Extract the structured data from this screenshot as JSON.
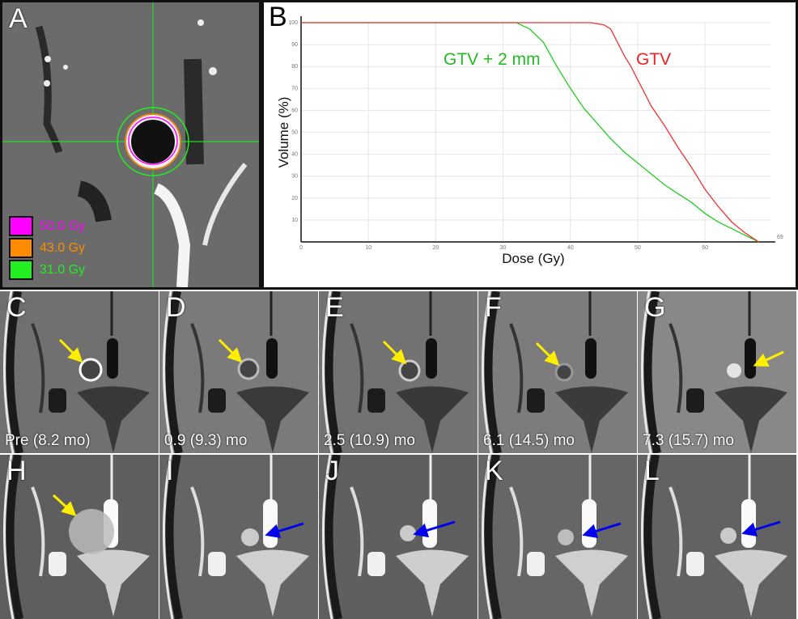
{
  "figure": {
    "panels": {
      "A": {
        "letter": "A",
        "legend": [
          {
            "label": "50.0 Gy",
            "color": "#ff00ff"
          },
          {
            "label": "43.0 Gy",
            "color": "#ff8c00"
          },
          {
            "label": "31.0 Gy",
            "color": "#22ee22"
          }
        ]
      },
      "B": {
        "letter": "B"
      },
      "C": {
        "letter": "C",
        "caption": "Pre (8.2 mo)",
        "arrow_color": "#ffee00"
      },
      "D": {
        "letter": "D",
        "caption": "0.9 (9.3) mo",
        "arrow_color": "#ffee00"
      },
      "E": {
        "letter": "E",
        "caption": "2.5 (10.9) mo",
        "arrow_color": "#ffee00"
      },
      "F": {
        "letter": "F",
        "caption": "6.1 (14.5) mo",
        "arrow_color": "#ffee00"
      },
      "G": {
        "letter": "G",
        "caption": "7.3 (15.7) mo",
        "arrow_color": "#ffee00"
      },
      "H": {
        "letter": "H",
        "arrow_color": "#ffee00"
      },
      "I": {
        "letter": "I",
        "arrow_color": "#0000ee"
      },
      "J": {
        "letter": "J",
        "arrow_color": "#0000ee"
      },
      "K": {
        "letter": "K",
        "arrow_color": "#0000ee"
      },
      "L": {
        "letter": "L",
        "arrow_color": "#0000ee"
      }
    }
  },
  "chart_data": {
    "type": "line",
    "title": "",
    "xlabel": "Dose (Gy)",
    "ylabel": "Volume (%)",
    "xlim": [
      0,
      69
    ],
    "ylim": [
      0,
      100
    ],
    "x_ticks": [
      "0",
      "10",
      "20",
      "30",
      "40",
      "50",
      "60"
    ],
    "x_end_label": "69",
    "y_ticks": [
      "10",
      "20",
      "30",
      "40",
      "50",
      "60",
      "70",
      "80",
      "90",
      "100"
    ],
    "grid": true,
    "series": [
      {
        "name": "GTV + 2 mm",
        "color": "#22cc22",
        "x": [
          0,
          32,
          34,
          36,
          38,
          40,
          42,
          44,
          46,
          48,
          50,
          52,
          54,
          56,
          58,
          60,
          62,
          64,
          66,
          68
        ],
        "y": [
          100,
          100,
          97,
          91,
          80,
          70,
          61,
          54,
          47,
          41,
          36,
          31,
          26,
          22,
          18,
          13,
          9,
          6,
          3,
          0
        ]
      },
      {
        "name": "GTV",
        "color": "#ee3333",
        "x": [
          0,
          43,
          45,
          46,
          47,
          48,
          49,
          50,
          51,
          52,
          54,
          56,
          58,
          60,
          62,
          64,
          66,
          68
        ],
        "y": [
          100,
          100,
          99,
          97,
          91,
          85,
          80,
          74,
          68,
          62,
          53,
          43,
          34,
          24,
          16,
          9,
          4,
          0
        ]
      }
    ],
    "annotations": [
      {
        "text": "GTV + 2 mm",
        "color": "#22bb22"
      },
      {
        "text": "GTV",
        "color": "#ee2222"
      }
    ]
  }
}
